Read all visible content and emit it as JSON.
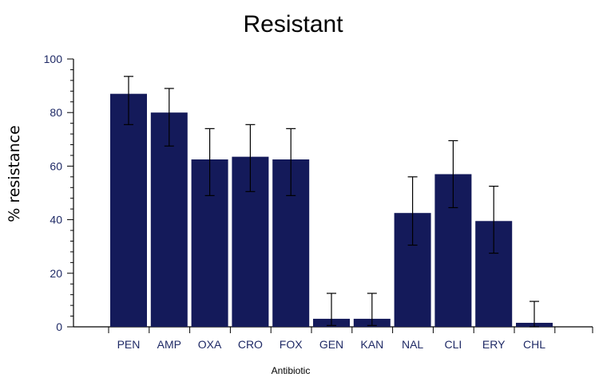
{
  "chart_data": {
    "type": "bar",
    "title": "Resistant",
    "xlabel": "Antibiotic",
    "ylabel": "% resistance",
    "ylim": [
      0,
      100
    ],
    "yticks": [
      0,
      20,
      40,
      60,
      80,
      100
    ],
    "categories": [
      "PEN",
      "AMP",
      "OXA",
      "CRO",
      "FOX",
      "GEN",
      "KAN",
      "NAL",
      "CLI",
      "ERY",
      "CHL"
    ],
    "values": [
      87,
      80,
      62.5,
      63.5,
      62.5,
      3,
      3,
      42.5,
      57,
      39.5,
      1.5
    ],
    "error_bars": [
      {
        "low": 75.5,
        "high": 93.5
      },
      {
        "low": 67.5,
        "high": 89
      },
      {
        "low": 49,
        "high": 74
      },
      {
        "low": 50.5,
        "high": 75.5
      },
      {
        "low": 49,
        "high": 74
      },
      {
        "low": 0.5,
        "high": 12.5
      },
      {
        "low": 0.5,
        "high": 12.5
      },
      {
        "low": 30.5,
        "high": 56
      },
      {
        "low": 44.5,
        "high": 69.5
      },
      {
        "low": 27.5,
        "high": 52.5
      },
      {
        "low": 0,
        "high": 9.5
      }
    ],
    "bar_color": "#141a5a",
    "grid": false,
    "legend": "none"
  }
}
